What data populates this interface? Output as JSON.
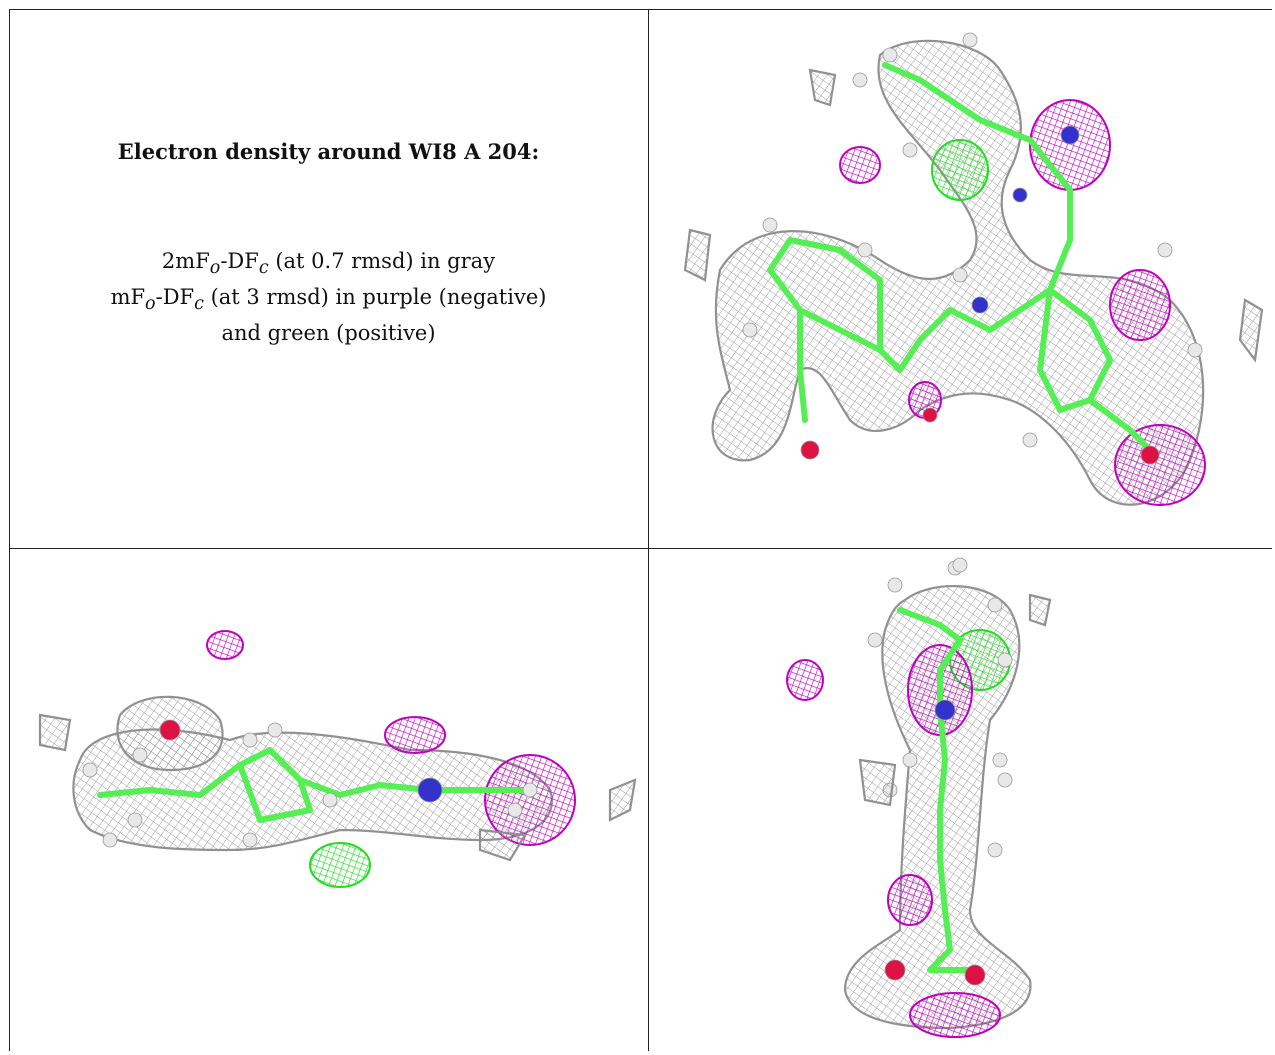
{
  "caption": {
    "title": "Electron density around WI8 A 204:",
    "lines": [
      {
        "prefix": "2mF",
        "sub1": "o",
        "mid": "-DF",
        "sub2": "c",
        "suffix": " (at 0.7 rmsd) in gray"
      },
      {
        "prefix": "mF",
        "sub1": "o",
        "mid": "-DF",
        "sub2": "c",
        "suffix": " (at 3 rmsd) in purple (negative)"
      },
      {
        "text": "and green (positive)"
      }
    ]
  },
  "panels": [
    {
      "name": "view-top-right",
      "description_visible": false
    },
    {
      "name": "view-bottom-left",
      "description_visible": false
    },
    {
      "name": "view-bottom-right",
      "description_visible": false
    }
  ],
  "colors": {
    "mesh_gray": "#9a9a9a",
    "negative_purple": "#c000c0",
    "positive_green": "#22dd22",
    "carbon": "#55ee55",
    "nitrogen": "#3333cc",
    "oxygen": "#dd1144",
    "hydrogen": "#e8e8e8"
  }
}
